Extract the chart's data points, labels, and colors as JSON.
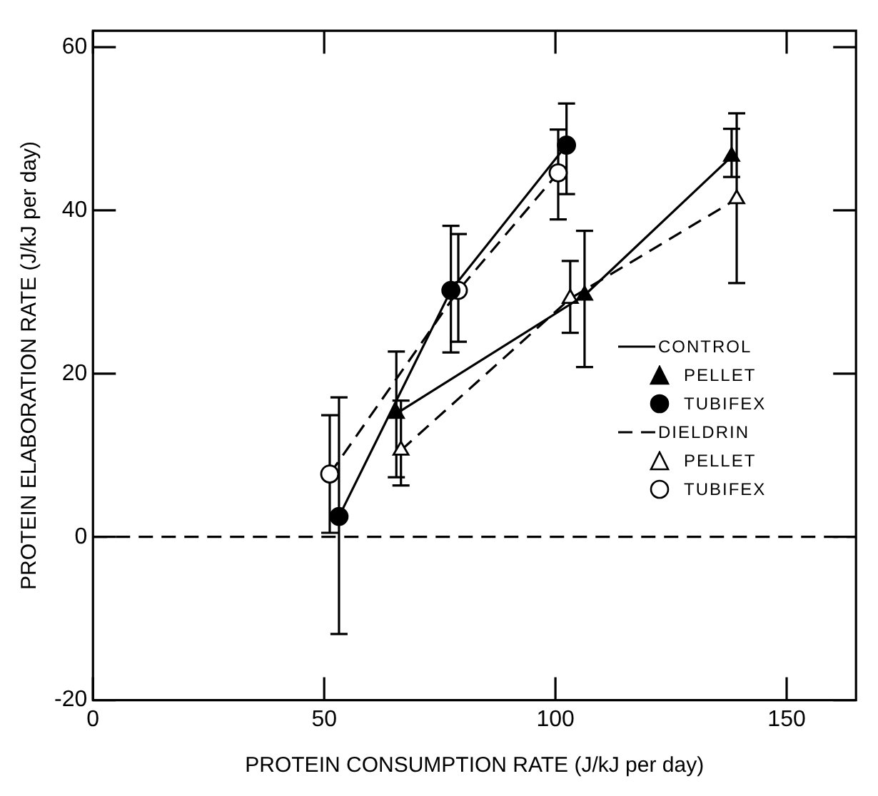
{
  "chart_data": {
    "type": "line",
    "xlabel": "PROTEIN CONSUMPTION RATE (J/kJ per day)",
    "ylabel": "PROTEIN ELABORATION RATE (J/kJ per day)",
    "xlim": [
      0,
      165
    ],
    "xticks": [
      0,
      50,
      100,
      150
    ],
    "ylim": [
      -20,
      62
    ],
    "yticks": [
      -20,
      0,
      20,
      40,
      60
    ],
    "grid": false,
    "legend": "right",
    "annotations": [
      "CONTROL",
      "DIELDRIN"
    ],
    "ref_lines": [
      {
        "axis": "y",
        "value": 0,
        "line_style": "dashed",
        "color": "#000000"
      }
    ],
    "series": [
      {
        "name": "PELLET",
        "color": "#000000",
        "marker": "triangle",
        "line_style": "solid",
        "x": [
          65.6,
          106.3,
          138.1
        ],
        "values": [
          15.1,
          29.6,
          46.6
        ],
        "errors": [
          [
            7.3,
            22.7
          ],
          [
            20.8,
            37.5
          ],
          [
            44.1,
            50
          ]
        ]
      },
      {
        "name": "TUBIFEX",
        "color": "#000000",
        "marker": "circle",
        "line_style": "solid",
        "x": [
          53.2,
          77.4,
          102.4
        ],
        "values": [
          2.5,
          30.2,
          48.0
        ],
        "errors": [
          [
            -11.9,
            17.1
          ],
          [
            22.6,
            38.1
          ],
          [
            42.0,
            53.1
          ]
        ]
      },
      {
        "name": "PELLET",
        "color": "#ffffff",
        "marker": "triangle",
        "line_style": "dashed",
        "x": [
          66.6,
          103.2,
          139.2
        ],
        "values": [
          10.6,
          29.2,
          41.4
        ],
        "errors": [
          [
            6.3,
            16.7
          ],
          [
            25.0,
            33.8
          ],
          [
            31.1,
            51.9
          ]
        ]
      },
      {
        "name": "TUBIFEX",
        "color": "#ffffff",
        "marker": "circle",
        "line_style": "dashed",
        "x": [
          51.2,
          79.0,
          100.6
        ],
        "values": [
          7.7,
          30.2,
          44.6
        ],
        "errors": [
          [
            0.5,
            14.9
          ],
          [
            23.9,
            37.1
          ],
          [
            38.9,
            49.9
          ]
        ]
      }
    ]
  }
}
